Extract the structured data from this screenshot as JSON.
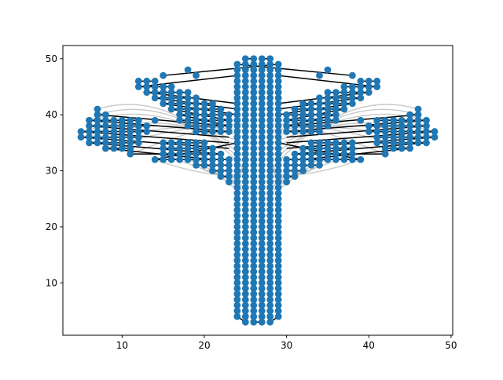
{
  "chart_data": {
    "type": "scatter",
    "title": "",
    "xlabel": "",
    "ylabel": "",
    "xlim": [
      2.8,
      50.2
    ],
    "ylim": [
      0.65,
      52.35
    ],
    "x_ticks": [
      10,
      20,
      30,
      40,
      50
    ],
    "y_ticks": [
      10,
      20,
      30,
      40,
      50
    ],
    "x_tick_labels": [
      "10",
      "20",
      "30",
      "40",
      "50"
    ],
    "y_tick_labels": [
      "10",
      "20",
      "30",
      "40",
      "50"
    ],
    "grid": false,
    "legend": "none",
    "colors": {
      "points": "#1f77b4",
      "path": "#000000",
      "mesh": "#bbbbbb"
    },
    "trunk": {
      "x_min": 24,
      "x_max": 29,
      "y_bottom_outer": 4,
      "y_bottom_inner": 3,
      "y_top_outer": 49,
      "y_top_inner": 50
    },
    "wings": {
      "left": {
        "upper_rows": [
          {
            "y": 46,
            "x_from": 12,
            "x_to": 14
          },
          {
            "y": 45,
            "x_from": 12,
            "x_to": 16
          },
          {
            "y": 44,
            "x_from": 13,
            "x_to": 18
          },
          {
            "y": 43,
            "x_from": 14,
            "x_to": 19
          },
          {
            "y": 42,
            "x_from": 15,
            "x_to": 21
          },
          {
            "y": 41,
            "x_from": 16,
            "x_to": 22
          },
          {
            "y": 40,
            "x_from": 17,
            "x_to": 23
          },
          {
            "y": 39,
            "x_from": 17,
            "x_to": 23
          },
          {
            "y": 38,
            "x_from": 18,
            "x_to": 23
          },
          {
            "y": 37,
            "x_from": 19,
            "x_to": 23
          }
        ],
        "mid_rows": [
          {
            "y": 41,
            "x_from": 7,
            "x_to": 7
          },
          {
            "y": 40,
            "x_from": 7,
            "x_to": 8
          },
          {
            "y": 39,
            "x_from": 6,
            "x_to": 12
          },
          {
            "y": 38,
            "x_from": 6,
            "x_to": 13
          },
          {
            "y": 37,
            "x_from": 5,
            "x_to": 13
          },
          {
            "y": 36,
            "x_from": 5,
            "x_to": 12
          },
          {
            "y": 35,
            "x_from": 6,
            "x_to": 12
          },
          {
            "y": 34,
            "x_from": 8,
            "x_to": 11
          },
          {
            "y": 33,
            "x_from": 11,
            "x_to": 11
          }
        ],
        "lower_rows": [
          {
            "y": 35,
            "x_from": 15,
            "x_to": 20
          },
          {
            "y": 34,
            "x_from": 15,
            "x_to": 21
          },
          {
            "y": 33,
            "x_from": 15,
            "x_to": 22
          },
          {
            "y": 32,
            "x_from": 14,
            "x_to": 23
          },
          {
            "y": 31,
            "x_from": 19,
            "x_to": 23
          },
          {
            "y": 30,
            "x_from": 21,
            "x_to": 23
          },
          {
            "y": 29,
            "x_from": 22,
            "x_to": 23
          },
          {
            "y": 28,
            "x_from": 23,
            "x_to": 23
          }
        ],
        "extra_points": [
          [
            18,
            48
          ],
          [
            19,
            47
          ],
          [
            15,
            47
          ],
          [
            14,
            39
          ]
        ]
      },
      "right": {
        "upper_rows": [
          {
            "y": 46,
            "x_from": 39,
            "x_to": 41
          },
          {
            "y": 45,
            "x_from": 37,
            "x_to": 41
          },
          {
            "y": 44,
            "x_from": 35,
            "x_to": 40
          },
          {
            "y": 43,
            "x_from": 34,
            "x_to": 39
          },
          {
            "y": 42,
            "x_from": 32,
            "x_to": 38
          },
          {
            "y": 41,
            "x_from": 31,
            "x_to": 37
          },
          {
            "y": 40,
            "x_from": 30,
            "x_to": 36
          },
          {
            "y": 39,
            "x_from": 30,
            "x_to": 36
          },
          {
            "y": 38,
            "x_from": 30,
            "x_to": 35
          },
          {
            "y": 37,
            "x_from": 30,
            "x_to": 34
          }
        ],
        "mid_rows": [
          {
            "y": 41,
            "x_from": 46,
            "x_to": 46
          },
          {
            "y": 40,
            "x_from": 45,
            "x_to": 46
          },
          {
            "y": 39,
            "x_from": 41,
            "x_to": 47
          },
          {
            "y": 38,
            "x_from": 40,
            "x_to": 47
          },
          {
            "y": 37,
            "x_from": 40,
            "x_to": 48
          },
          {
            "y": 36,
            "x_from": 41,
            "x_to": 48
          },
          {
            "y": 35,
            "x_from": 41,
            "x_to": 47
          },
          {
            "y": 34,
            "x_from": 42,
            "x_to": 45
          },
          {
            "y": 33,
            "x_from": 42,
            "x_to": 42
          }
        ],
        "lower_rows": [
          {
            "y": 35,
            "x_from": 33,
            "x_to": 38
          },
          {
            "y": 34,
            "x_from": 32,
            "x_to": 38
          },
          {
            "y": 33,
            "x_from": 31,
            "x_to": 38
          },
          {
            "y": 32,
            "x_from": 30,
            "x_to": 39
          },
          {
            "y": 31,
            "x_from": 30,
            "x_to": 34
          },
          {
            "y": 30,
            "x_from": 30,
            "x_to": 32
          },
          {
            "y": 29,
            "x_from": 30,
            "x_to": 31
          },
          {
            "y": 28,
            "x_from": 30,
            "x_to": 30
          }
        ],
        "extra_points": [
          [
            35,
            48
          ],
          [
            34,
            47
          ],
          [
            38,
            47
          ],
          [
            39,
            39
          ]
        ]
      }
    },
    "path_segments": [
      [
        [
          15,
          47
        ],
        [
          29,
          49
        ]
      ],
      [
        [
          12,
          45
        ],
        [
          24,
          47
        ]
      ],
      [
        [
          13,
          44
        ],
        [
          24,
          42
        ]
      ],
      [
        [
          14,
          43
        ],
        [
          24,
          41
        ]
      ],
      [
        [
          15,
          42
        ],
        [
          24,
          40
        ]
      ],
      [
        [
          16,
          41
        ],
        [
          23,
          39
        ]
      ],
      [
        [
          17,
          40
        ],
        [
          23,
          38
        ]
      ],
      [
        [
          38,
          47
        ],
        [
          24,
          49
        ]
      ],
      [
        [
          41,
          45
        ],
        [
          29,
          47
        ]
      ],
      [
        [
          40,
          44
        ],
        [
          29,
          42
        ]
      ],
      [
        [
          39,
          43
        ],
        [
          29,
          41
        ]
      ],
      [
        [
          38,
          42
        ],
        [
          29,
          40
        ]
      ],
      [
        [
          37,
          41
        ],
        [
          30,
          39
        ]
      ],
      [
        [
          36,
          40
        ],
        [
          30,
          38
        ]
      ],
      [
        [
          7,
          40
        ],
        [
          23,
          38
        ]
      ],
      [
        [
          6,
          39
        ],
        [
          23,
          37
        ]
      ],
      [
        [
          6,
          38
        ],
        [
          23,
          36
        ]
      ],
      [
        [
          5,
          37
        ],
        [
          23,
          35
        ]
      ],
      [
        [
          5,
          36
        ],
        [
          23,
          34
        ]
      ],
      [
        [
          6,
          35
        ],
        [
          22,
          33
        ]
      ],
      [
        [
          8,
          34
        ],
        [
          21,
          32
        ]
      ],
      [
        [
          46,
          40
        ],
        [
          30,
          38
        ]
      ],
      [
        [
          47,
          39
        ],
        [
          30,
          37
        ]
      ],
      [
        [
          47,
          38
        ],
        [
          30,
          36
        ]
      ],
      [
        [
          48,
          37
        ],
        [
          30,
          35
        ]
      ],
      [
        [
          48,
          36
        ],
        [
          30,
          34
        ]
      ],
      [
        [
          47,
          35
        ],
        [
          31,
          33
        ]
      ],
      [
        [
          45,
          34
        ],
        [
          32,
          32
        ]
      ],
      [
        [
          14,
          32
        ],
        [
          24,
          35
        ]
      ],
      [
        [
          39,
          32
        ],
        [
          29,
          35
        ]
      ],
      [
        [
          11,
          33
        ],
        [
          22,
          33
        ]
      ],
      [
        [
          42,
          33
        ],
        [
          31,
          33
        ]
      ]
    ]
  }
}
